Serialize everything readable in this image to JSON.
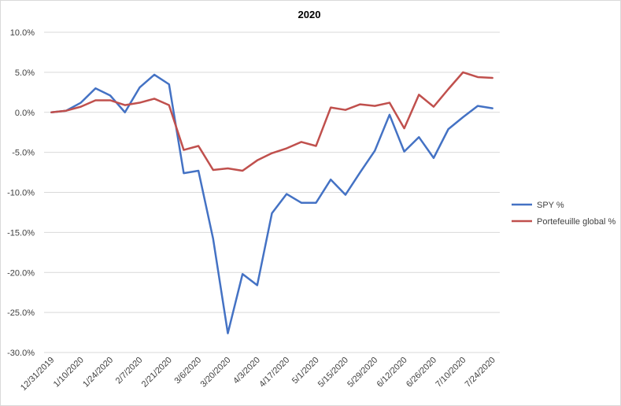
{
  "chart_data": {
    "type": "line",
    "title": "2020",
    "xlabel": "",
    "ylabel": "",
    "ylim": [
      -30,
      10
    ],
    "y_tick_step": 5,
    "y_tick_format": "percent_1dp",
    "grid": true,
    "legend_position": "right",
    "x": [
      "12/31/2019",
      "1/3/2020",
      "1/10/2020",
      "1/17/2020",
      "1/24/2020",
      "1/31/2020",
      "2/7/2020",
      "2/14/2020",
      "2/21/2020",
      "2/28/2020",
      "3/6/2020",
      "3/13/2020",
      "3/20/2020",
      "3/27/2020",
      "4/3/2020",
      "4/10/2020",
      "4/17/2020",
      "4/24/2020",
      "5/1/2020",
      "5/8/2020",
      "5/15/2020",
      "5/22/2020",
      "5/29/2020",
      "6/5/2020",
      "6/12/2020",
      "6/19/2020",
      "6/26/2020",
      "7/3/2020",
      "7/10/2020",
      "7/17/2020",
      "7/24/2020"
    ],
    "x_tick_labels": [
      "12/31/2019",
      "1/10/2020",
      "1/24/2020",
      "2/7/2020",
      "2/21/2020",
      "3/6/2020",
      "3/20/2020",
      "4/3/2020",
      "4/17/2020",
      "5/1/2020",
      "5/15/2020",
      "5/29/2020",
      "6/12/2020",
      "6/26/2020",
      "7/10/2020",
      "7/24/2020"
    ],
    "series": [
      {
        "name": "SPY %",
        "color": "#4472c4",
        "values": [
          0.0,
          0.2,
          1.2,
          3.0,
          2.1,
          0.0,
          3.1,
          4.7,
          3.5,
          -7.6,
          -7.3,
          -15.8,
          -27.6,
          -20.2,
          -21.6,
          -12.6,
          -10.2,
          -11.3,
          -11.3,
          -8.4,
          -10.3,
          -7.5,
          -4.8,
          -0.3,
          -4.9,
          -3.1,
          -5.7,
          -2.1,
          -0.6,
          0.8,
          0.5
        ]
      },
      {
        "name": "Portefeuille global %",
        "color": "#c0504d",
        "values": [
          0.0,
          0.2,
          0.7,
          1.5,
          1.5,
          0.9,
          1.2,
          1.7,
          0.9,
          -4.7,
          -4.2,
          -7.2,
          -7.0,
          -7.3,
          -6.0,
          -5.1,
          -4.5,
          -3.7,
          -4.2,
          0.6,
          0.3,
          1.0,
          0.8,
          1.2,
          -2.0,
          2.2,
          0.7,
          2.9,
          5.0,
          4.4,
          4.3
        ]
      }
    ]
  }
}
